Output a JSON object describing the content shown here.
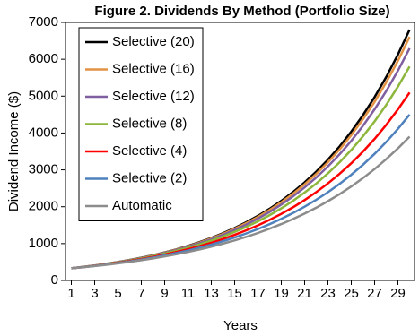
{
  "chart_data": {
    "type": "line",
    "title": "Figure 2. Dividends By Method (Portfolio Size)",
    "x_label": "Years",
    "y_label": "Dividend Income ($)",
    "x": [
      1,
      2,
      3,
      4,
      5,
      6,
      7,
      8,
      9,
      10,
      11,
      12,
      13,
      14,
      15,
      16,
      17,
      18,
      19,
      20,
      21,
      22,
      23,
      24,
      25,
      26,
      27,
      28,
      29,
      30
    ],
    "xlim": [
      0.5,
      30.5
    ],
    "xticks": [
      1,
      3,
      5,
      7,
      9,
      11,
      13,
      15,
      17,
      19,
      21,
      23,
      25,
      27,
      29
    ],
    "ylim": [
      0,
      7000
    ],
    "yticks": [
      0,
      1000,
      2000,
      3000,
      4000,
      5000,
      6000,
      7000
    ],
    "legend": "top-left",
    "series": [
      {
        "name": "Selective (20)",
        "color": "#000000",
        "values": [
          330,
          366,
          407,
          451,
          501,
          556,
          617,
          685,
          761,
          844,
          937,
          1040,
          1154,
          1281,
          1422,
          1579,
          1752,
          1945,
          2159,
          2396,
          2660,
          2952,
          3277,
          3637,
          4037,
          4481,
          4974,
          5521,
          6128,
          6802
        ]
      },
      {
        "name": "Selective (16)",
        "color": "#e39243",
        "values": [
          330,
          366,
          406,
          450,
          499,
          553,
          613,
          680,
          754,
          836,
          927,
          1028,
          1140,
          1264,
          1402,
          1555,
          1724,
          1912,
          2120,
          2351,
          2607,
          2890,
          3205,
          3554,
          3941,
          4370,
          4845,
          5373,
          5957,
          6606
        ]
      },
      {
        "name": "Selective (12)",
        "color": "#7f5fa0",
        "values": [
          330,
          365,
          404,
          448,
          496,
          549,
          607,
          672,
          744,
          824,
          912,
          1010,
          1118,
          1238,
          1370,
          1517,
          1679,
          1859,
          2058,
          2278,
          2522,
          2792,
          3091,
          3422,
          3788,
          4193,
          4642,
          5139,
          5689,
          6298
        ]
      },
      {
        "name": "Selective (8)",
        "color": "#8cb63c",
        "values": [
          330,
          364,
          402,
          444,
          490,
          541,
          597,
          659,
          728,
          804,
          887,
          979,
          1081,
          1193,
          1317,
          1454,
          1605,
          1772,
          1956,
          2159,
          2384,
          2631,
          2905,
          3207,
          3540,
          3908,
          4314,
          4762,
          5257,
          5803
        ]
      },
      {
        "name": "Selective (4)",
        "color": "#ff0000",
        "values": [
          330,
          363,
          399,
          438,
          481,
          529,
          581,
          639,
          702,
          772,
          848,
          932,
          1024,
          1126,
          1237,
          1360,
          1494,
          1642,
          1805,
          1984,
          2180,
          2396,
          2633,
          2894,
          3180,
          3495,
          3841,
          4221,
          4639,
          5098
        ]
      },
      {
        "name": "Selective (2)",
        "color": "#4f81bd",
        "values": [
          330,
          361,
          395,
          432,
          473,
          518,
          567,
          620,
          679,
          743,
          813,
          889,
          973,
          1065,
          1165,
          1275,
          1395,
          1527,
          1670,
          1828,
          2000,
          2189,
          2395,
          2621,
          2868,
          3138,
          3434,
          3758,
          4112,
          4500
        ]
      },
      {
        "name": "Automatic",
        "color": "#8c8c8c",
        "values": [
          330,
          359,
          391,
          426,
          464,
          505,
          550,
          599,
          652,
          710,
          773,
          842,
          917,
          999,
          1087,
          1184,
          1289,
          1404,
          1529,
          1665,
          1813,
          1974,
          2150,
          2341,
          2549,
          2775,
          3022,
          3291,
          3583,
          3902
        ]
      }
    ]
  }
}
